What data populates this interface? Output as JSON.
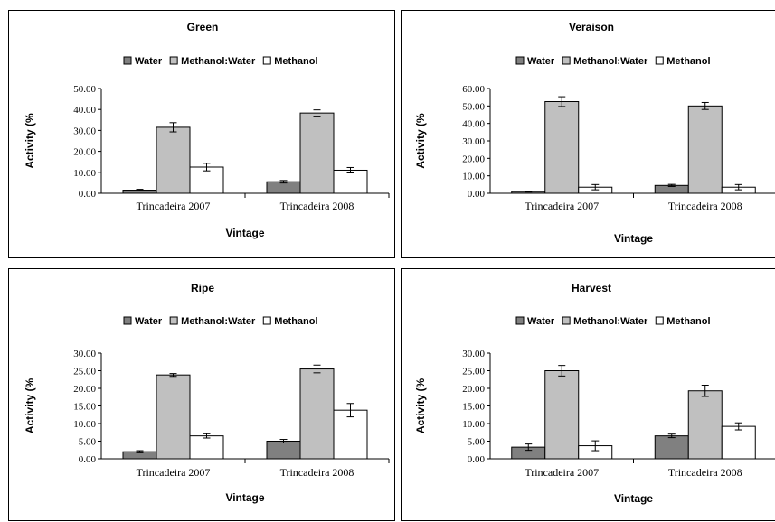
{
  "chart_data": [
    {
      "type": "bar",
      "title": "Green",
      "xlabel": "Vintage",
      "ylabel": "Activity (%",
      "categories": [
        "Trincadeira 2007",
        "Trincadeira 2008"
      ],
      "ylim": [
        0,
        50
      ],
      "yticks": [
        "0.00",
        "10.00",
        "20.00",
        "30.00",
        "40.00",
        "50.00"
      ],
      "legend": "top",
      "series": [
        {
          "name": "Water",
          "color": "#808080",
          "values": [
            1.5,
            5.5
          ],
          "errors": [
            0.4,
            0.6
          ]
        },
        {
          "name": "Methanol:Water",
          "color": "#c0c0c0",
          "values": [
            31.5,
            38.3
          ],
          "errors": [
            2.2,
            1.5
          ]
        },
        {
          "name": "Methanol",
          "color": "#ffffff",
          "values": [
            12.5,
            11.0
          ],
          "errors": [
            1.8,
            1.3
          ]
        }
      ]
    },
    {
      "type": "bar",
      "title": "Veraison",
      "xlabel": "Vintage",
      "ylabel": "Activity (%",
      "categories": [
        "Trincadeira 2007",
        "Trincadeira 2008"
      ],
      "ylim": [
        0,
        60
      ],
      "yticks": [
        "0.00",
        "10.00",
        "20.00",
        "30.00",
        "40.00",
        "50.00",
        "60.00"
      ],
      "legend": "top",
      "series": [
        {
          "name": "Water",
          "color": "#808080",
          "values": [
            1.0,
            4.5
          ],
          "errors": [
            0.3,
            0.6
          ]
        },
        {
          "name": "Methanol:Water",
          "color": "#c0c0c0",
          "values": [
            52.5,
            50.0
          ],
          "errors": [
            2.8,
            2.0
          ]
        },
        {
          "name": "Methanol",
          "color": "#ffffff",
          "values": [
            3.5,
            3.5
          ],
          "errors": [
            1.5,
            1.5
          ]
        }
      ]
    },
    {
      "type": "bar",
      "title": "Ripe",
      "xlabel": "Vintage",
      "ylabel": "Activity (%",
      "categories": [
        "Trincadeira 2007",
        "Trincadeira 2008"
      ],
      "ylim": [
        0,
        30
      ],
      "yticks": [
        "0.00",
        "5.00",
        "10.00",
        "15.00",
        "20.00",
        "25.00",
        "30.00"
      ],
      "legend": "top",
      "series": [
        {
          "name": "Water",
          "color": "#808080",
          "values": [
            2.0,
            5.0
          ],
          "errors": [
            0.3,
            0.5
          ]
        },
        {
          "name": "Methanol:Water",
          "color": "#c0c0c0",
          "values": [
            23.8,
            25.5
          ],
          "errors": [
            0.4,
            1.1
          ]
        },
        {
          "name": "Methanol",
          "color": "#ffffff",
          "values": [
            6.5,
            13.8
          ],
          "errors": [
            0.6,
            1.9
          ]
        }
      ]
    },
    {
      "type": "bar",
      "title": "Harvest",
      "xlabel": "Vintage",
      "ylabel": "Activity (%",
      "categories": [
        "Trincadeira 2007",
        "Trincadeira 2008"
      ],
      "ylim": [
        0,
        30
      ],
      "yticks": [
        "0.00",
        "5.00",
        "10.00",
        "15.00",
        "20.00",
        "25.00",
        "30.00"
      ],
      "legend": "top",
      "series": [
        {
          "name": "Water",
          "color": "#808080",
          "values": [
            3.3,
            6.5
          ],
          "errors": [
            0.9,
            0.5
          ]
        },
        {
          "name": "Methanol:Water",
          "color": "#c0c0c0",
          "values": [
            25.0,
            19.3
          ],
          "errors": [
            1.5,
            1.6
          ]
        },
        {
          "name": "Methanol",
          "color": "#ffffff",
          "values": [
            3.7,
            9.2
          ],
          "errors": [
            1.4,
            1.0
          ]
        }
      ]
    }
  ]
}
